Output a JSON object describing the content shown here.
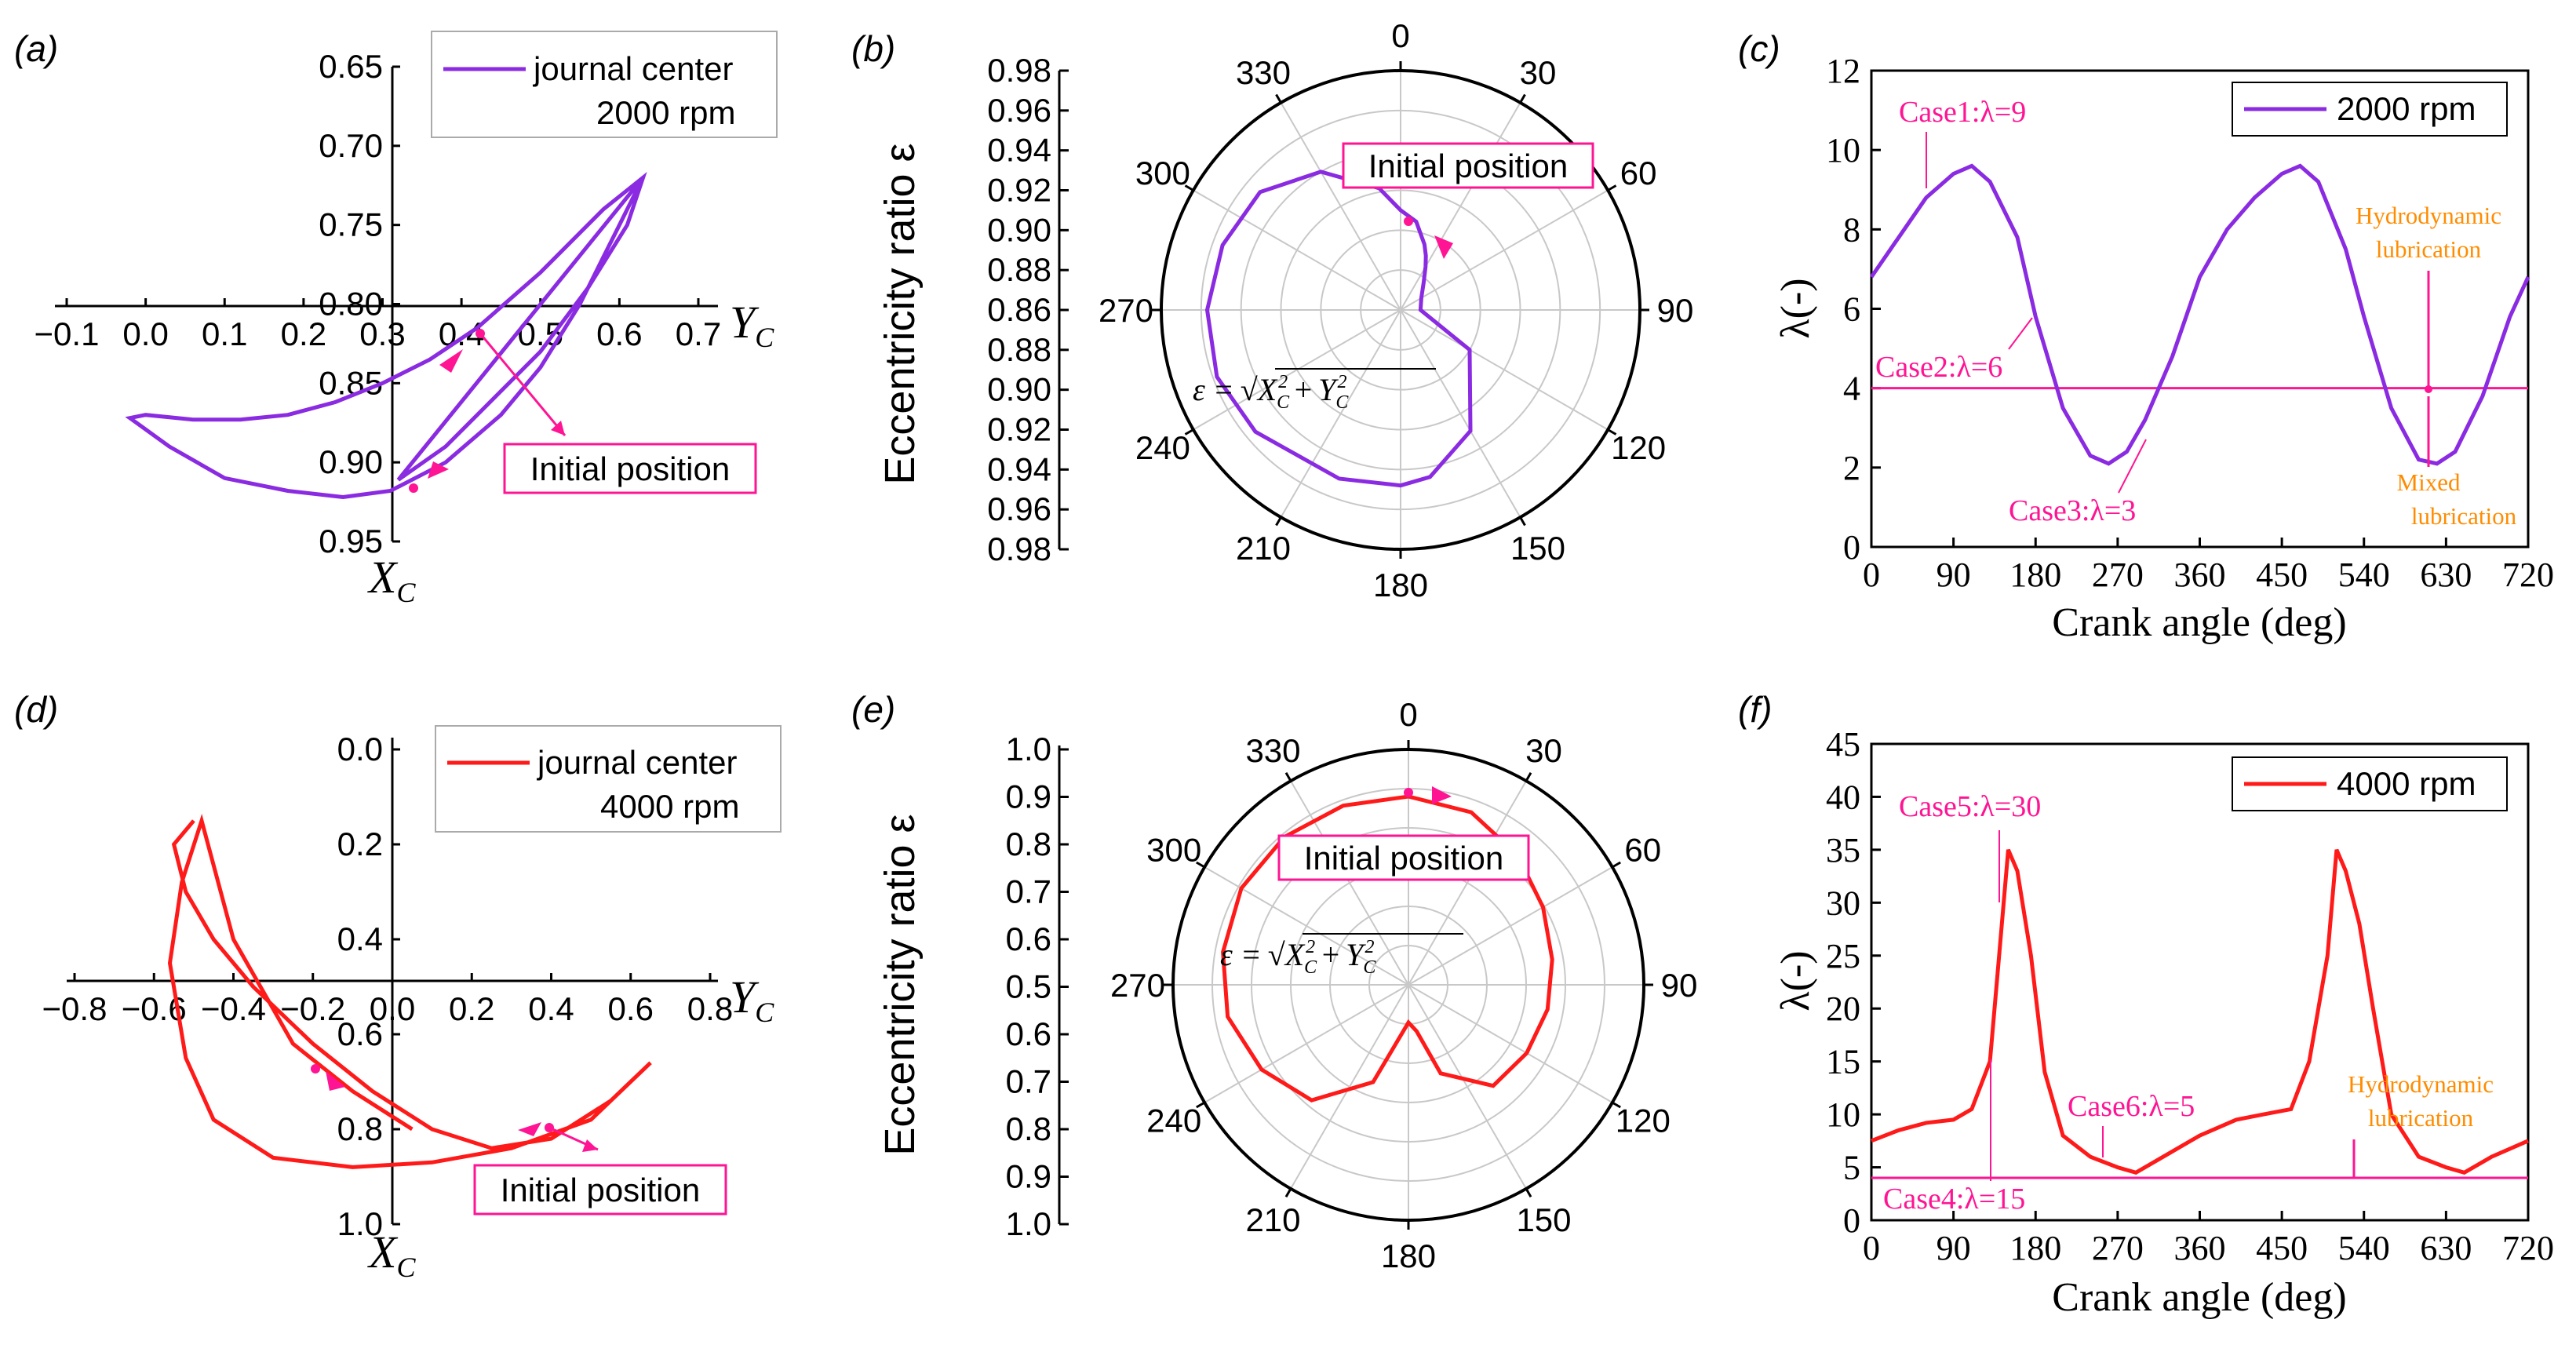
{
  "colors": {
    "purple": "#8a2be2",
    "red": "#ff1a1a",
    "pink": "#ff1493",
    "orange": "#ff8c00",
    "grid": "#c8c8c8"
  },
  "panels": {
    "a": {
      "label": "(a)",
      "legend_series": "journal center",
      "legend_speed": "2000 rpm",
      "x_axis": "Y",
      "x_sub": "C",
      "y_axis": "X",
      "y_sub": "C",
      "x_ticks": [
        "−0.1",
        "0.0",
        "0.1",
        "0.2",
        "0.3",
        "0.4",
        "0.5",
        "0.6",
        "0.7"
      ],
      "y_ticks": [
        "0.65",
        "0.70",
        "0.75",
        "0.80",
        "0.85",
        "0.90",
        "0.95"
      ],
      "annotation": "Initial position"
    },
    "b": {
      "label": "(b)",
      "ylabel": "Eccentricity ratio ε",
      "r_ticks": [
        "0.98",
        "0.96",
        "0.94",
        "0.92",
        "0.90",
        "0.88",
        "0.86",
        "0.88",
        "0.90",
        "0.92",
        "0.94",
        "0.96",
        "0.98"
      ],
      "angles": [
        "0",
        "30",
        "60",
        "90",
        "120",
        "150",
        "180",
        "210",
        "240",
        "270",
        "300",
        "330"
      ],
      "annotation": "Initial position",
      "formula_lhs": "ε =",
      "formula_x": "X",
      "formula_y": "Y",
      "formula_sub": "C",
      "formula_sup": "2"
    },
    "c": {
      "label": "(c)",
      "legend": "2000 rpm",
      "xlabel": "Crank angle (deg)",
      "ylabel": "λ(-)",
      "x_ticks": [
        "0",
        "90",
        "180",
        "270",
        "360",
        "450",
        "540",
        "630",
        "720"
      ],
      "y_ticks": [
        "0",
        "2",
        "4",
        "6",
        "8",
        "10",
        "12"
      ],
      "cases": [
        "Case1:λ=9",
        "Case2:λ=6",
        "Case3:λ=3"
      ],
      "hydro_line1": "Hydrodynamic",
      "hydro_line2": "lubrication",
      "mixed_line1": "Mixed",
      "mixed_line2": "lubrication"
    },
    "d": {
      "label": "(d)",
      "legend_series": "journal center",
      "legend_speed": "4000 rpm",
      "x_axis": "Y",
      "x_sub": "C",
      "y_axis": "X",
      "y_sub": "C",
      "x_ticks": [
        "−0.8",
        "−0.6",
        "−0.4",
        "−0.2",
        "0.0",
        "0.2",
        "0.4",
        "0.6",
        "0.8"
      ],
      "y_ticks": [
        "0.0",
        "0.2",
        "0.4",
        "0.6",
        "0.8",
        "1.0"
      ],
      "annotation": "Initial position"
    },
    "e": {
      "label": "(e)",
      "ylabel": "Eccentricity ratio ε",
      "r_ticks": [
        "1.0",
        "0.9",
        "0.8",
        "0.7",
        "0.6",
        "0.5",
        "0.6",
        "0.7",
        "0.8",
        "0.9",
        "1.0"
      ],
      "angles": [
        "0",
        "30",
        "60",
        "90",
        "120",
        "150",
        "180",
        "210",
        "240",
        "270",
        "300",
        "330"
      ],
      "annotation": "Initial position",
      "formula_lhs": "ε =",
      "formula_x": "X",
      "formula_y": "Y",
      "formula_sub": "C",
      "formula_sup": "2"
    },
    "f": {
      "label": "(f)",
      "legend": "4000 rpm",
      "xlabel": "Crank angle (deg)",
      "ylabel": "λ(-)",
      "x_ticks": [
        "0",
        "90",
        "180",
        "270",
        "360",
        "450",
        "540",
        "630",
        "720"
      ],
      "y_ticks": [
        "0",
        "5",
        "10",
        "15",
        "20",
        "25",
        "30",
        "35",
        "40",
        "45"
      ],
      "cases": [
        "Case5:λ=30",
        "Case4:λ=15",
        "Case6:λ=5"
      ],
      "hydro_line1": "Hydrodynamic",
      "hydro_line2": "lubrication"
    }
  },
  "chart_data": [
    {
      "panel": "a",
      "type": "line",
      "title": "",
      "series": [
        {
          "name": "journal center 2000 rpm",
          "x": [
            0.32,
            0.38,
            0.44,
            0.5,
            0.56,
            0.61,
            0.63,
            0.58,
            0.5,
            0.42,
            0.36,
            0.3,
            0.24,
            0.18,
            0.12,
            0.06,
            0.0,
            -0.02,
            0.03,
            0.1,
            0.18,
            0.25,
            0.31,
            0.38,
            0.45,
            0.5,
            0.55,
            0.58,
            0.6,
            0.62,
            0.63
          ],
          "y": [
            0.911,
            0.89,
            0.86,
            0.83,
            0.79,
            0.75,
            0.72,
            0.74,
            0.78,
            0.815,
            0.835,
            0.85,
            0.862,
            0.87,
            0.873,
            0.873,
            0.87,
            0.872,
            0.89,
            0.91,
            0.918,
            0.922,
            0.918,
            0.9,
            0.87,
            0.84,
            0.8,
            0.77,
            0.75,
            0.73,
            0.72
          ]
        }
      ],
      "xlim": [
        -0.1,
        0.7
      ],
      "ylim": [
        0.95,
        0.65
      ]
    },
    {
      "panel": "b",
      "type": "polar",
      "series": [
        {
          "name": "ε 2000 rpm",
          "theta_deg": [
            0,
            10,
            20,
            25,
            30,
            40,
            60,
            90,
            120,
            150,
            170,
            180,
            200,
            230,
            250,
            270,
            290,
            310,
            330,
            350,
            360
          ],
          "r": [
            0.91,
            0.905,
            0.895,
            0.89,
            0.885,
            0.878,
            0.872,
            0.87,
            0.9,
            0.93,
            0.945,
            0.948,
            0.95,
            0.955,
            0.958,
            0.957,
            0.955,
            0.952,
            0.94,
            0.922,
            0.91
          ]
        }
      ],
      "r_range": [
        0.86,
        0.98
      ]
    },
    {
      "panel": "c",
      "type": "line",
      "series": [
        {
          "name": "2000 rpm",
          "x": [
            0,
            30,
            60,
            90,
            110,
            130,
            160,
            180,
            210,
            240,
            260,
            280,
            300,
            330,
            360,
            390,
            420,
            450,
            470,
            490,
            520,
            540,
            570,
            600,
            620,
            640,
            670,
            700,
            720
          ],
          "y": [
            6.8,
            7.8,
            8.8,
            9.4,
            9.6,
            9.2,
            7.8,
            5.8,
            3.5,
            2.3,
            2.1,
            2.4,
            3.2,
            4.8,
            6.8,
            8.0,
            8.8,
            9.4,
            9.6,
            9.2,
            7.5,
            5.8,
            3.5,
            2.2,
            2.1,
            2.4,
            3.8,
            5.8,
            6.8
          ]
        },
        {
          "name": "threshold",
          "x": [
            0,
            720
          ],
          "y": [
            4,
            4
          ]
        }
      ],
      "xlim": [
        0,
        720
      ],
      "ylim": [
        0,
        12
      ],
      "xlabel": "Crank angle (deg)",
      "ylabel": "λ(-)"
    },
    {
      "panel": "d",
      "type": "line",
      "series": [
        {
          "name": "journal center 4000 rpm",
          "x": [
            -0.5,
            -0.55,
            -0.52,
            -0.45,
            -0.35,
            -0.2,
            -0.05,
            0.1,
            0.25,
            0.4,
            0.55,
            0.65,
            0.5,
            0.3,
            0.1,
            -0.1,
            -0.3,
            -0.45,
            -0.52,
            -0.56,
            -0.53,
            -0.48,
            -0.4,
            -0.25,
            -0.1,
            0.05
          ],
          "y": [
            0.15,
            0.2,
            0.3,
            0.4,
            0.5,
            0.62,
            0.72,
            0.8,
            0.84,
            0.82,
            0.74,
            0.66,
            0.78,
            0.84,
            0.87,
            0.88,
            0.86,
            0.78,
            0.65,
            0.45,
            0.28,
            0.15,
            0.4,
            0.62,
            0.72,
            0.8
          ]
        }
      ],
      "xlim": [
        -0.8,
        0.8
      ],
      "ylim": [
        1.0,
        0.0
      ]
    },
    {
      "panel": "e",
      "type": "polar",
      "series": [
        {
          "name": "ε 4000 rpm",
          "theta_deg": [
            0,
            20,
            40,
            60,
            80,
            100,
            120,
            140,
            160,
            170,
            180,
            200,
            220,
            240,
            260,
            280,
            300,
            320,
            340,
            360
          ],
          "r": [
            0.9,
            0.89,
            0.86,
            0.83,
            0.81,
            0.8,
            0.79,
            0.78,
            0.7,
            0.6,
            0.58,
            0.72,
            0.82,
            0.86,
            0.89,
            0.9,
            0.91,
            0.91,
            0.905,
            0.9
          ]
        }
      ],
      "r_range": [
        0.5,
        1.0
      ]
    },
    {
      "panel": "f",
      "type": "line",
      "series": [
        {
          "name": "4000 rpm",
          "x": [
            0,
            30,
            60,
            90,
            110,
            130,
            140,
            150,
            160,
            175,
            190,
            210,
            240,
            270,
            290,
            320,
            360,
            400,
            430,
            460,
            480,
            500,
            510,
            520,
            535,
            550,
            570,
            600,
            630,
            650,
            680,
            720
          ],
          "y": [
            7.5,
            8.5,
            9.2,
            9.5,
            10.5,
            15,
            25,
            35,
            33,
            25,
            14,
            8,
            6,
            5,
            4.5,
            6,
            8,
            9.5,
            10,
            10.5,
            15,
            25,
            35,
            33,
            28,
            20,
            10,
            6,
            5,
            4.5,
            6,
            7.5
          ]
        },
        {
          "name": "threshold",
          "x": [
            0,
            720
          ],
          "y": [
            4,
            4
          ]
        }
      ],
      "xlim": [
        0,
        720
      ],
      "ylim": [
        0,
        45
      ],
      "xlabel": "Crank angle (deg)",
      "ylabel": "λ(-)"
    }
  ]
}
